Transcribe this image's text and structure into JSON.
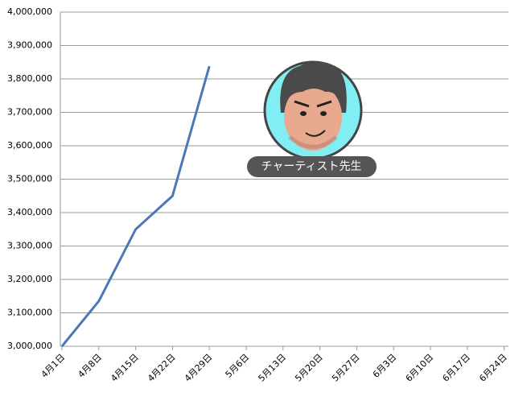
{
  "chart_data": {
    "type": "line",
    "categories": [
      "4月1日",
      "4月8日",
      "4月15日",
      "4月22日",
      "4月29日",
      "5月6日",
      "5月13日",
      "5月20日",
      "5月27日",
      "6月3日",
      "6月10日",
      "6月17日",
      "6月24日"
    ],
    "values": [
      3000000,
      3135000,
      3350000,
      3450000,
      3838000,
      null,
      null,
      null,
      null,
      null,
      null,
      null,
      null
    ],
    "color": "#4a7ab5",
    "ylim": [
      3000000,
      4000000
    ],
    "yticks": [
      {
        "value": 3000000,
        "label": "3,000,000"
      },
      {
        "value": 3100000,
        "label": "3,100,000"
      },
      {
        "value": 3200000,
        "label": "3,200,000"
      },
      {
        "value": 3300000,
        "label": "3,300,000"
      },
      {
        "value": 3400000,
        "label": "3,400,000"
      },
      {
        "value": 3500000,
        "label": "3,500,000"
      },
      {
        "value": 3600000,
        "label": "3,600,000"
      },
      {
        "value": 3700000,
        "label": "3,700,000"
      },
      {
        "value": 3800000,
        "label": "3,800,000"
      },
      {
        "value": 3900000,
        "label": "3,900,000"
      },
      {
        "value": 4000000,
        "label": "4,000,000"
      }
    ],
    "grid": true,
    "annotation": "チャーティスト先生"
  }
}
